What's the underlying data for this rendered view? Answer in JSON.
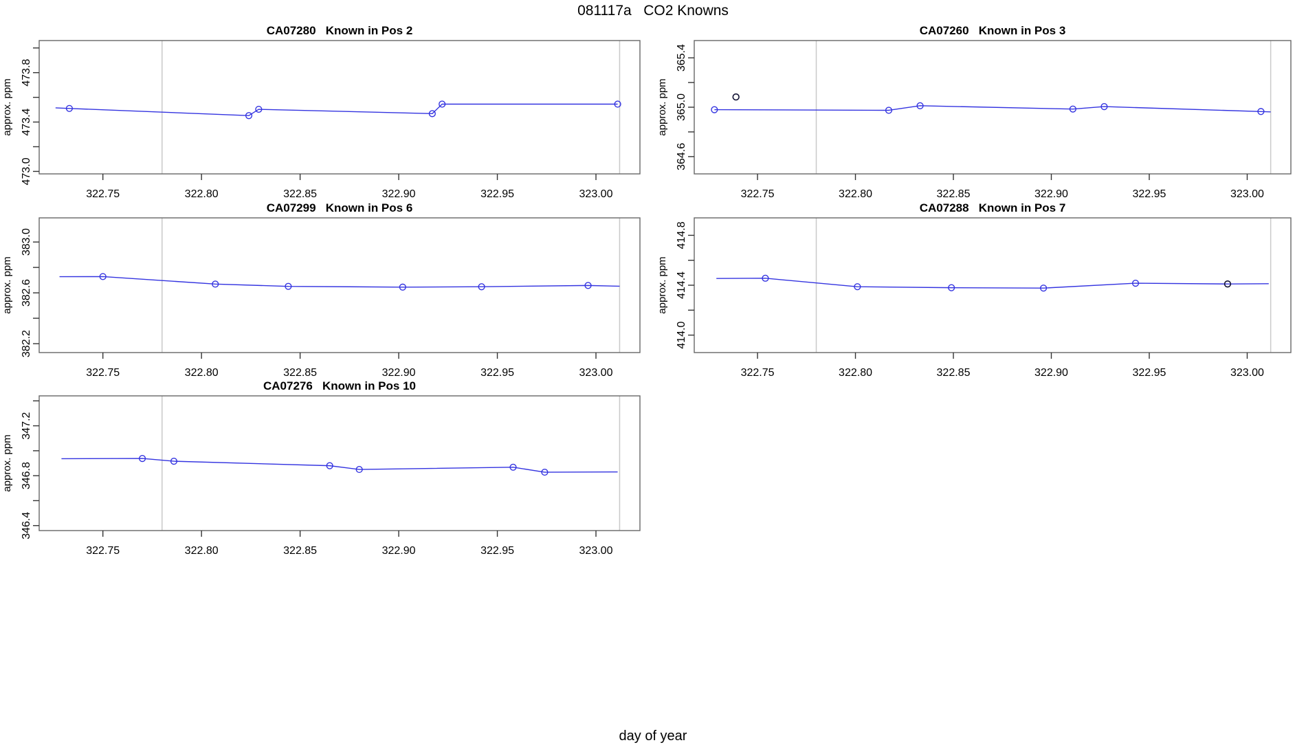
{
  "page": {
    "title": "081117a   CO2 Knowns",
    "xlabel": "day of year"
  },
  "chart_data": {
    "type": "line",
    "title": "081117a   CO2 Knowns",
    "xlabel": "day of year",
    "ylabel": "approx. ppm",
    "legend": "none",
    "grid": "off",
    "xlim": [
      322.7177,
      323.0223
    ],
    "xticks": [
      {
        "v": 322.75,
        "label": "322.75"
      },
      {
        "v": 322.8,
        "label": "322.80"
      },
      {
        "v": 322.85,
        "label": "322.85"
      },
      {
        "v": 322.9,
        "label": "322.90"
      },
      {
        "v": 322.95,
        "label": "322.95"
      },
      {
        "v": 323.0,
        "label": "323.00"
      }
    ],
    "vlines": [
      322.78,
      323.012
    ],
    "colors": {
      "line": "#3333e0",
      "point": "#3333e0",
      "flagged_point": "#111133",
      "vline": "#c9c9c9",
      "box": "#666666",
      "tick": "#333333",
      "text": "#000000",
      "background": "#ffffff"
    },
    "panels": [
      {
        "id": "CA07280",
        "title": "CA07280   Known in Pos 2",
        "row": 0,
        "col": 0,
        "ylim": [
          472.98,
          474.06
        ],
        "yticks": [
          {
            "v": 473.0,
            "label": "473.0"
          },
          {
            "v": 473.2,
            "label": ""
          },
          {
            "v": 473.4,
            "label": "473.4"
          },
          {
            "v": 473.6,
            "label": ""
          },
          {
            "v": 473.8,
            "label": "473.8"
          },
          {
            "v": 474.0,
            "label": ""
          }
        ],
        "line": [
          [
            322.726,
            473.515
          ],
          [
            322.733,
            473.51
          ],
          [
            322.824,
            473.452
          ],
          [
            322.829,
            473.503
          ],
          [
            322.917,
            473.468
          ],
          [
            322.922,
            473.545
          ],
          [
            323.011,
            473.545
          ]
        ],
        "points": [
          [
            322.733,
            473.51
          ],
          [
            322.824,
            473.452
          ],
          [
            322.829,
            473.503
          ],
          [
            322.917,
            473.468
          ],
          [
            322.922,
            473.545
          ],
          [
            323.011,
            473.545
          ]
        ],
        "flagged_points": []
      },
      {
        "id": "CA07260",
        "title": "CA07260   Known in Pos 3",
        "row": 0,
        "col": 1,
        "ylim": [
          364.46,
          365.54
        ],
        "yticks": [
          {
            "v": 364.6,
            "label": "364.6"
          },
          {
            "v": 364.8,
            "label": ""
          },
          {
            "v": 365.0,
            "label": "365.0"
          },
          {
            "v": 365.2,
            "label": ""
          },
          {
            "v": 365.4,
            "label": "365.4"
          }
        ],
        "line": [
          [
            322.728,
            364.98
          ],
          [
            322.817,
            364.975
          ],
          [
            322.833,
            365.012
          ],
          [
            322.911,
            364.985
          ],
          [
            322.927,
            365.005
          ],
          [
            323.007,
            364.965
          ],
          [
            323.012,
            364.962
          ]
        ],
        "points": [
          [
            322.728,
            364.98
          ],
          [
            322.817,
            364.975
          ],
          [
            322.833,
            365.012
          ],
          [
            322.911,
            364.985
          ],
          [
            322.927,
            365.005
          ],
          [
            323.007,
            364.965
          ]
        ],
        "flagged_points": [
          [
            322.739,
            365.083
          ]
        ]
      },
      {
        "id": "CA07299",
        "title": "CA07299   Known in Pos 6",
        "row": 1,
        "col": 0,
        "ylim": [
          382.13,
          383.19
        ],
        "yticks": [
          {
            "v": 382.2,
            "label": "382.2"
          },
          {
            "v": 382.4,
            "label": ""
          },
          {
            "v": 382.6,
            "label": "382.6"
          },
          {
            "v": 382.8,
            "label": ""
          },
          {
            "v": 383.0,
            "label": "383.0"
          }
        ],
        "line": [
          [
            322.728,
            382.727
          ],
          [
            322.75,
            382.728
          ],
          [
            322.807,
            382.669
          ],
          [
            322.844,
            382.651
          ],
          [
            322.902,
            382.645
          ],
          [
            322.942,
            382.648
          ],
          [
            322.996,
            382.658
          ],
          [
            323.012,
            382.652
          ]
        ],
        "points": [
          [
            322.75,
            382.728
          ],
          [
            322.807,
            382.669
          ],
          [
            322.844,
            382.651
          ],
          [
            322.902,
            382.645
          ],
          [
            322.942,
            382.648
          ],
          [
            322.996,
            382.658
          ]
        ],
        "flagged_points": []
      },
      {
        "id": "CA07288",
        "title": "CA07288   Known in Pos 7",
        "row": 1,
        "col": 1,
        "ylim": [
          413.86,
          414.94
        ],
        "yticks": [
          {
            "v": 414.0,
            "label": "414.0"
          },
          {
            "v": 414.2,
            "label": ""
          },
          {
            "v": 414.4,
            "label": "414.4"
          },
          {
            "v": 414.6,
            "label": ""
          },
          {
            "v": 414.8,
            "label": "414.8"
          }
        ],
        "line": [
          [
            322.729,
            414.454
          ],
          [
            322.754,
            414.456
          ],
          [
            322.801,
            414.388
          ],
          [
            322.849,
            414.38
          ],
          [
            322.896,
            414.377
          ],
          [
            322.943,
            414.416
          ],
          [
            322.99,
            414.41
          ],
          [
            323.011,
            414.412
          ]
        ],
        "points": [
          [
            322.754,
            414.456
          ],
          [
            322.801,
            414.388
          ],
          [
            322.849,
            414.38
          ],
          [
            322.896,
            414.377
          ],
          [
            322.943,
            414.416
          ]
        ],
        "flagged_points": [
          [
            322.99,
            414.41
          ]
        ]
      },
      {
        "id": "CA07276",
        "title": "CA07276   Known in Pos 10",
        "row": 2,
        "col": 0,
        "ylim": [
          346.36,
          347.44
        ],
        "yticks": [
          {
            "v": 346.4,
            "label": "346.4"
          },
          {
            "v": 346.6,
            "label": ""
          },
          {
            "v": 346.8,
            "label": "346.8"
          },
          {
            "v": 347.0,
            "label": ""
          },
          {
            "v": 347.2,
            "label": "347.2"
          },
          {
            "v": 347.4,
            "label": ""
          }
        ],
        "line": [
          [
            322.729,
            346.936
          ],
          [
            322.77,
            346.938
          ],
          [
            322.786,
            346.916
          ],
          [
            322.865,
            346.88
          ],
          [
            322.88,
            346.85
          ],
          [
            322.958,
            346.868
          ],
          [
            322.974,
            346.828
          ],
          [
            323.011,
            346.83
          ]
        ],
        "points": [
          [
            322.77,
            346.938
          ],
          [
            322.786,
            346.916
          ],
          [
            322.865,
            346.88
          ],
          [
            322.88,
            346.85
          ],
          [
            322.958,
            346.868
          ],
          [
            322.974,
            346.828
          ]
        ],
        "flagged_points": []
      }
    ]
  }
}
